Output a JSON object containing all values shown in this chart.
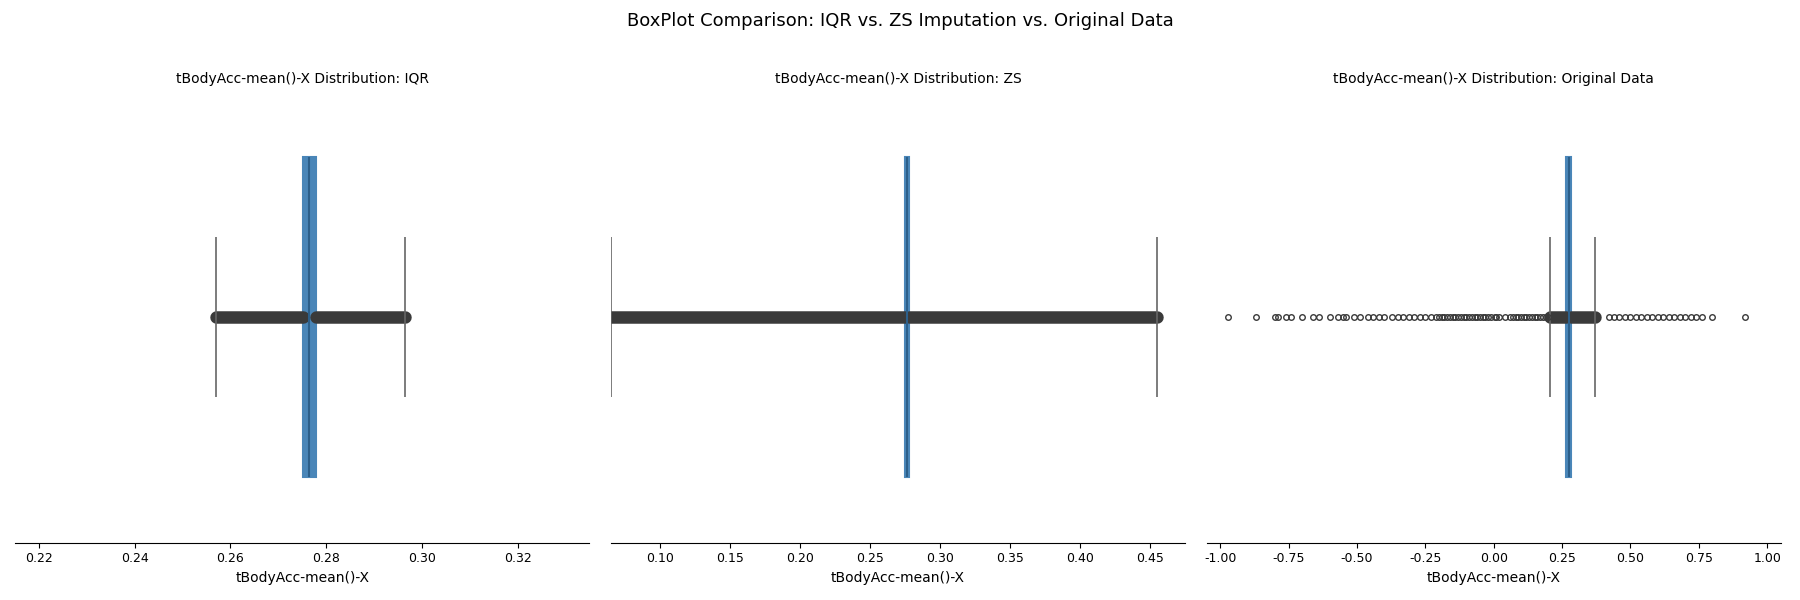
{
  "title": "BoxPlot Comparison: IQR vs. ZS Imputation vs. Original Data",
  "titles": [
    "tBodyAcc-mean()-X Distribution: IQR",
    "tBodyAcc-mean()-X Distribution: ZS",
    "tBodyAcc-mean()-X Distribution: Original Data"
  ],
  "xlabel": "tBodyAcc-mean()-X",
  "box_color": "#4a86b8",
  "median_color": "#2c5f8a",
  "whisker_color": "#3a3a3a",
  "flier_color": "#3a3a3a",
  "cap_color": "#666666",
  "panels": [
    {
      "median": 0.2765,
      "q1": 0.2752,
      "q3": 0.2778,
      "whisker_low": 0.257,
      "whisker_high": 0.2965,
      "fliers": [],
      "xlim": [
        0.215,
        0.335
      ]
    },
    {
      "median": 0.2765,
      "q1": 0.2752,
      "q3": 0.2778,
      "whisker_low": 0.065,
      "whisker_high": 0.455,
      "fliers": [],
      "xlim": [
        0.065,
        0.475
      ]
    },
    {
      "median": 0.2765,
      "q1": 0.2635,
      "q3": 0.284,
      "whisker_low": 0.205,
      "whisker_high": 0.37,
      "fliers": [
        -0.97,
        -0.87,
        -0.8,
        -0.79,
        -0.76,
        -0.74,
        -0.7,
        -0.66,
        -0.64,
        -0.6,
        -0.57,
        -0.55,
        -0.54,
        -0.51,
        -0.49,
        -0.46,
        -0.44,
        -0.42,
        -0.4,
        -0.37,
        -0.35,
        -0.33,
        -0.31,
        -0.29,
        -0.27,
        -0.25,
        -0.23,
        -0.21,
        -0.2,
        -0.19,
        -0.18,
        -0.17,
        -0.16,
        -0.15,
        -0.14,
        -0.13,
        -0.12,
        -0.11,
        -0.1,
        -0.09,
        -0.08,
        -0.07,
        -0.06,
        -0.05,
        -0.04,
        -0.03,
        -0.02,
        -0.01,
        0.005,
        0.01,
        0.02,
        0.04,
        0.06,
        0.07,
        0.08,
        0.09,
        0.1,
        0.11,
        0.12,
        0.13,
        0.14,
        0.15,
        0.16,
        0.17,
        0.18,
        0.19,
        0.2,
        0.42,
        0.44,
        0.46,
        0.48,
        0.5,
        0.52,
        0.54,
        0.56,
        0.58,
        0.6,
        0.62,
        0.64,
        0.66,
        0.68,
        0.7,
        0.72,
        0.74,
        0.76,
        0.8,
        0.92
      ],
      "xlim": [
        -1.05,
        1.05
      ]
    }
  ],
  "xticks": [
    [
      0.22,
      0.24,
      0.26,
      0.28,
      0.3,
      0.32
    ],
    [
      0.1,
      0.15,
      0.2,
      0.25,
      0.3,
      0.35,
      0.4,
      0.45
    ],
    [
      -1.0,
      -0.75,
      -0.5,
      -0.25,
      0.0,
      0.25,
      0.5,
      0.75,
      1.0
    ]
  ]
}
